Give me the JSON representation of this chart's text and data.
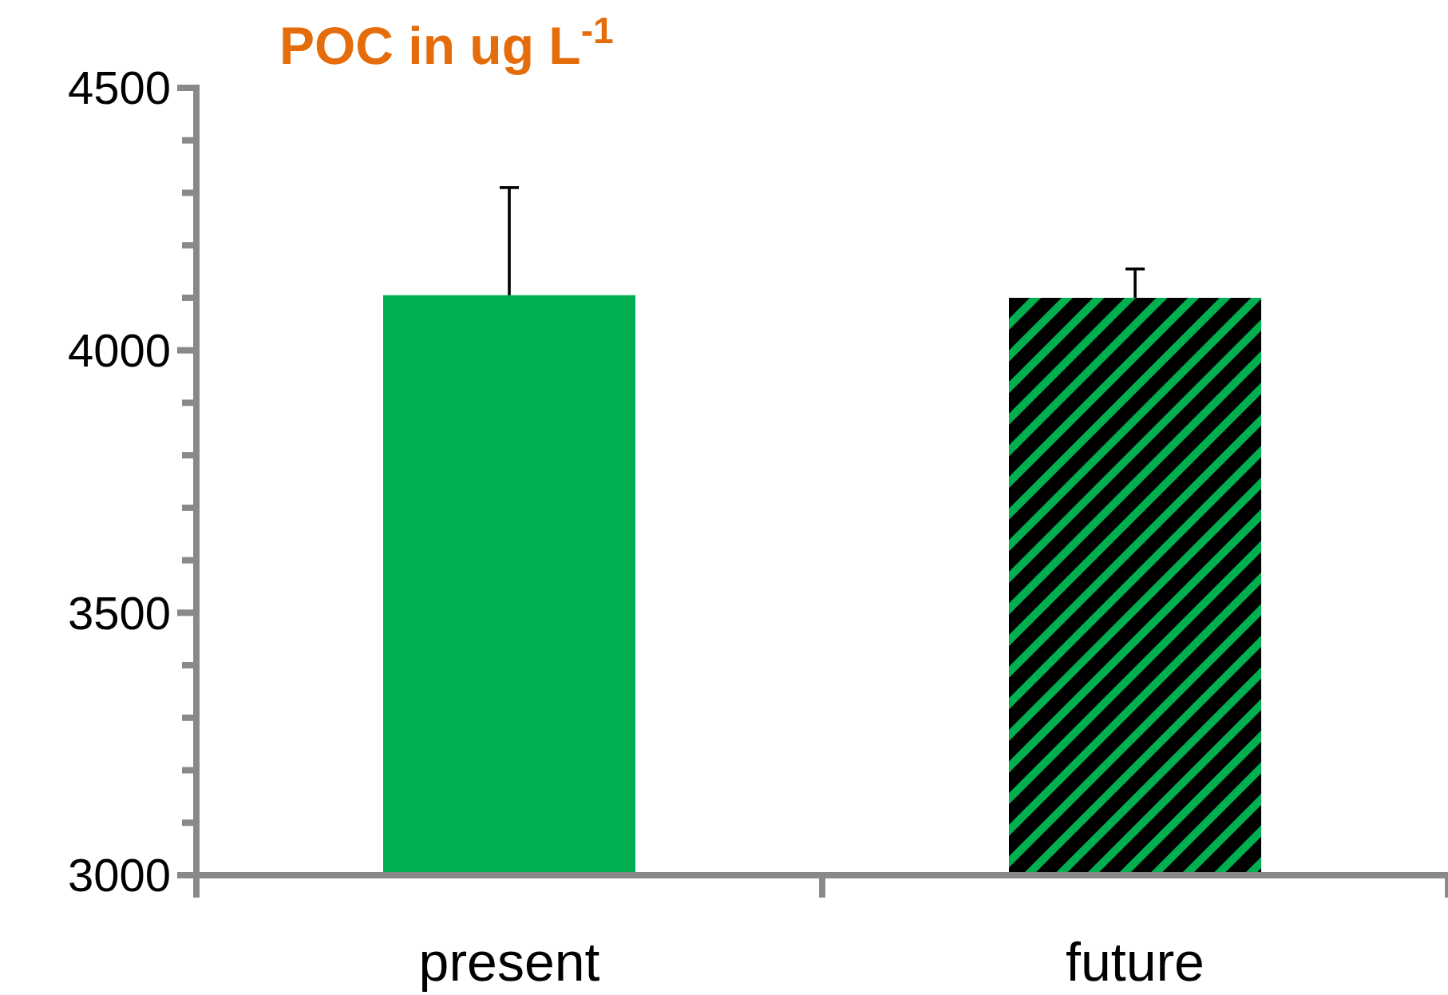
{
  "chart_data": {
    "type": "bar",
    "title": "POC in ug L$^{-1}$",
    "categories": [
      "present",
      "future"
    ],
    "values": [
      4105,
      4100
    ],
    "colors": [
      "#00b050",
      "#000000"
    ],
    "errors": [
      [
        4105,
        4310
      ],
      [
        4100,
        4155
      ]
    ],
    "ylim": [
      3000,
      4500
    ],
    "yticks": [
      3000,
      {
        "value": 3100,
        "label": null
      },
      {
        "value": 3200,
        "label": null
      },
      {
        "value": 3300,
        "label": null
      },
      {
        "value": 3400,
        "label": null
      },
      3500,
      {
        "value": 3600,
        "label": null
      },
      {
        "value": 3700,
        "label": null
      },
      {
        "value": 3800,
        "label": null
      },
      {
        "value": 3900,
        "label": null
      },
      4000,
      {
        "value": 4100,
        "label": null
      },
      {
        "value": 4200,
        "label": null
      },
      {
        "value": 4300,
        "label": null
      },
      {
        "value": 4400,
        "label": null
      },
      4500
    ]
  }
}
